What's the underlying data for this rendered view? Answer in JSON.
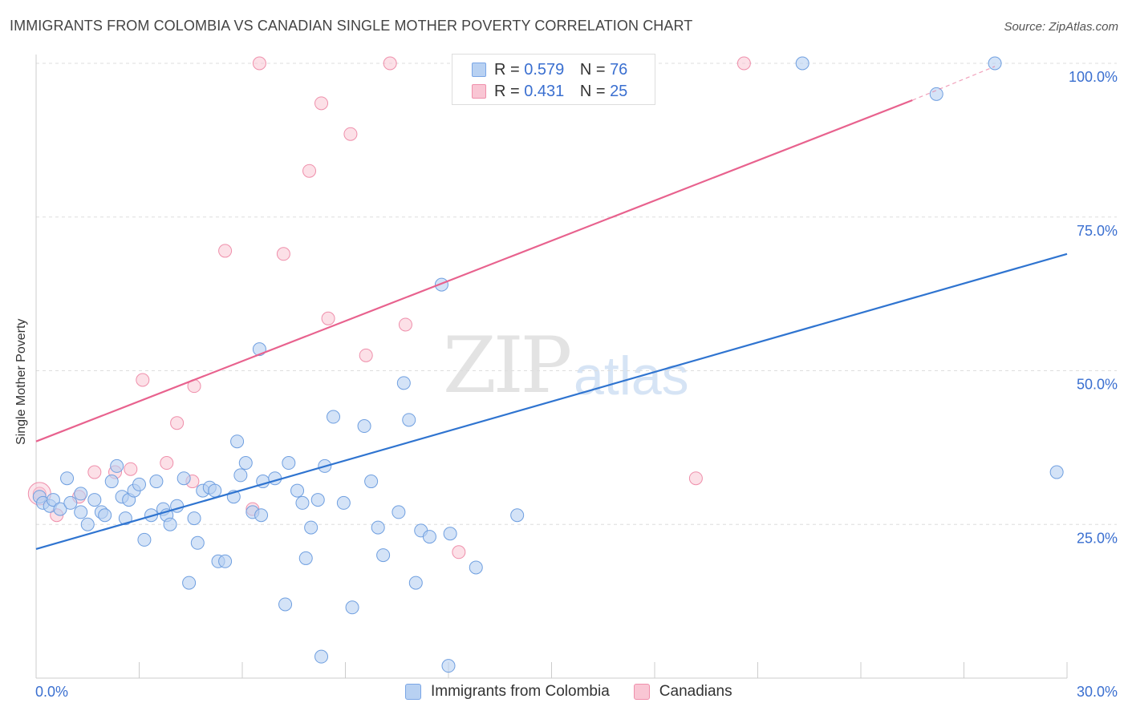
{
  "header": {
    "title": "IMMIGRANTS FROM COLOMBIA VS CANADIAN SINGLE MOTHER POVERTY CORRELATION CHART",
    "source": "Source: ZipAtlas.com"
  },
  "watermark": {
    "zip": "ZIP",
    "atlas": "atlas"
  },
  "legend": {
    "r_label": "R =",
    "n_label": "N =",
    "series": [
      {
        "name": "Immigrants from Colombia",
        "r": "0.579",
        "n": "76",
        "fill": "#b8d1f2",
        "stroke": "#7aa6e6"
      },
      {
        "name": "Canadians",
        "r": "0.431",
        "n": "25",
        "fill": "#f9c6d4",
        "stroke": "#ef8fab"
      }
    ]
  },
  "colors": {
    "blue_line": "#2f74d0",
    "pink_line": "#e8628e",
    "axis_text": "#3a6fd0",
    "grid": "#dddddd"
  },
  "chart_data": {
    "type": "scatter",
    "title": "IMMIGRANTS FROM COLOMBIA VS CANADIAN SINGLE MOTHER POVERTY CORRELATION CHART",
    "xlabel": "",
    "ylabel": "Single Mother Poverty",
    "xlim": [
      0,
      30
    ],
    "ylim": [
      0,
      105
    ],
    "x_tick_labels": [
      "0.0%",
      "30.0%"
    ],
    "y_ticks": [
      25,
      50,
      75,
      100
    ],
    "y_tick_labels": [
      "25.0%",
      "50.0%",
      "75.0%",
      "100.0%"
    ],
    "grid": true,
    "legend_position": "top-center",
    "series": [
      {
        "name": "Immigrants from Colombia",
        "trend": {
          "x": [
            0,
            30
          ],
          "y": [
            21.0,
            69.0
          ]
        },
        "points": [
          [
            0.1,
            29.5
          ],
          [
            0.2,
            28.5
          ],
          [
            0.4,
            28.0
          ],
          [
            0.5,
            29.0
          ],
          [
            0.7,
            27.5
          ],
          [
            0.9,
            32.5
          ],
          [
            1.0,
            28.5
          ],
          [
            1.3,
            30.0
          ],
          [
            1.3,
            27.0
          ],
          [
            1.5,
            25.0
          ],
          [
            1.7,
            29.0
          ],
          [
            1.9,
            27.0
          ],
          [
            2.0,
            26.5
          ],
          [
            2.2,
            32.0
          ],
          [
            2.35,
            34.5
          ],
          [
            2.5,
            29.5
          ],
          [
            2.6,
            26.0
          ],
          [
            2.7,
            29.0
          ],
          [
            2.85,
            30.5
          ],
          [
            3.0,
            31.5
          ],
          [
            3.15,
            22.5
          ],
          [
            3.35,
            26.5
          ],
          [
            3.5,
            32.0
          ],
          [
            3.7,
            27.5
          ],
          [
            3.8,
            26.5
          ],
          [
            3.9,
            25.0
          ],
          [
            4.1,
            28.0
          ],
          [
            4.3,
            32.5
          ],
          [
            4.45,
            15.5
          ],
          [
            4.6,
            26.0
          ],
          [
            4.7,
            22.0
          ],
          [
            4.85,
            30.5
          ],
          [
            5.05,
            31.0
          ],
          [
            5.2,
            30.5
          ],
          [
            5.3,
            19.0
          ],
          [
            5.5,
            19.0
          ],
          [
            5.75,
            29.5
          ],
          [
            5.85,
            38.5
          ],
          [
            5.95,
            33.0
          ],
          [
            6.1,
            35.0
          ],
          [
            6.3,
            27.0
          ],
          [
            6.5,
            53.5
          ],
          [
            6.55,
            26.5
          ],
          [
            6.6,
            32.0
          ],
          [
            6.95,
            32.5
          ],
          [
            7.25,
            12.0
          ],
          [
            7.35,
            35.0
          ],
          [
            7.6,
            30.5
          ],
          [
            7.75,
            28.5
          ],
          [
            7.85,
            19.5
          ],
          [
            8.0,
            24.5
          ],
          [
            8.2,
            29.0
          ],
          [
            8.3,
            3.5
          ],
          [
            8.4,
            34.5
          ],
          [
            8.65,
            42.5
          ],
          [
            8.95,
            28.5
          ],
          [
            9.2,
            11.5
          ],
          [
            9.55,
            41.0
          ],
          [
            9.75,
            32.0
          ],
          [
            9.95,
            24.5
          ],
          [
            10.1,
            20.0
          ],
          [
            10.55,
            27.0
          ],
          [
            10.7,
            48.0
          ],
          [
            10.85,
            42.0
          ],
          [
            11.05,
            15.5
          ],
          [
            11.2,
            24.0
          ],
          [
            11.45,
            23.0
          ],
          [
            11.8,
            64.0
          ],
          [
            12.0,
            2.0
          ],
          [
            12.05,
            23.5
          ],
          [
            12.8,
            18.0
          ],
          [
            14.0,
            26.5
          ],
          [
            22.3,
            100.0
          ],
          [
            26.2,
            95.0
          ],
          [
            27.9,
            100.0
          ],
          [
            29.7,
            33.5
          ]
        ]
      },
      {
        "name": "Canadians",
        "trend": {
          "x": [
            0,
            25.5,
            27.9
          ],
          "y": [
            38.5,
            94.0,
            99.5
          ]
        },
        "points": [
          [
            0.1,
            30.0
          ],
          [
            0.6,
            26.5
          ],
          [
            1.25,
            29.5
          ],
          [
            1.7,
            33.5
          ],
          [
            2.3,
            33.5
          ],
          [
            2.75,
            34.0
          ],
          [
            3.1,
            48.5
          ],
          [
            3.8,
            35.0
          ],
          [
            4.1,
            41.5
          ],
          [
            4.55,
            32.0
          ],
          [
            4.6,
            47.5
          ],
          [
            5.5,
            69.5
          ],
          [
            6.3,
            27.5
          ],
          [
            6.5,
            100.0
          ],
          [
            7.2,
            69.0
          ],
          [
            7.95,
            82.5
          ],
          [
            8.3,
            93.5
          ],
          [
            8.5,
            58.5
          ],
          [
            9.15,
            88.5
          ],
          [
            9.6,
            52.5
          ],
          [
            10.3,
            100.0
          ],
          [
            10.75,
            57.5
          ],
          [
            12.3,
            20.5
          ],
          [
            19.2,
            32.5
          ],
          [
            20.6,
            100.0
          ]
        ]
      }
    ]
  }
}
